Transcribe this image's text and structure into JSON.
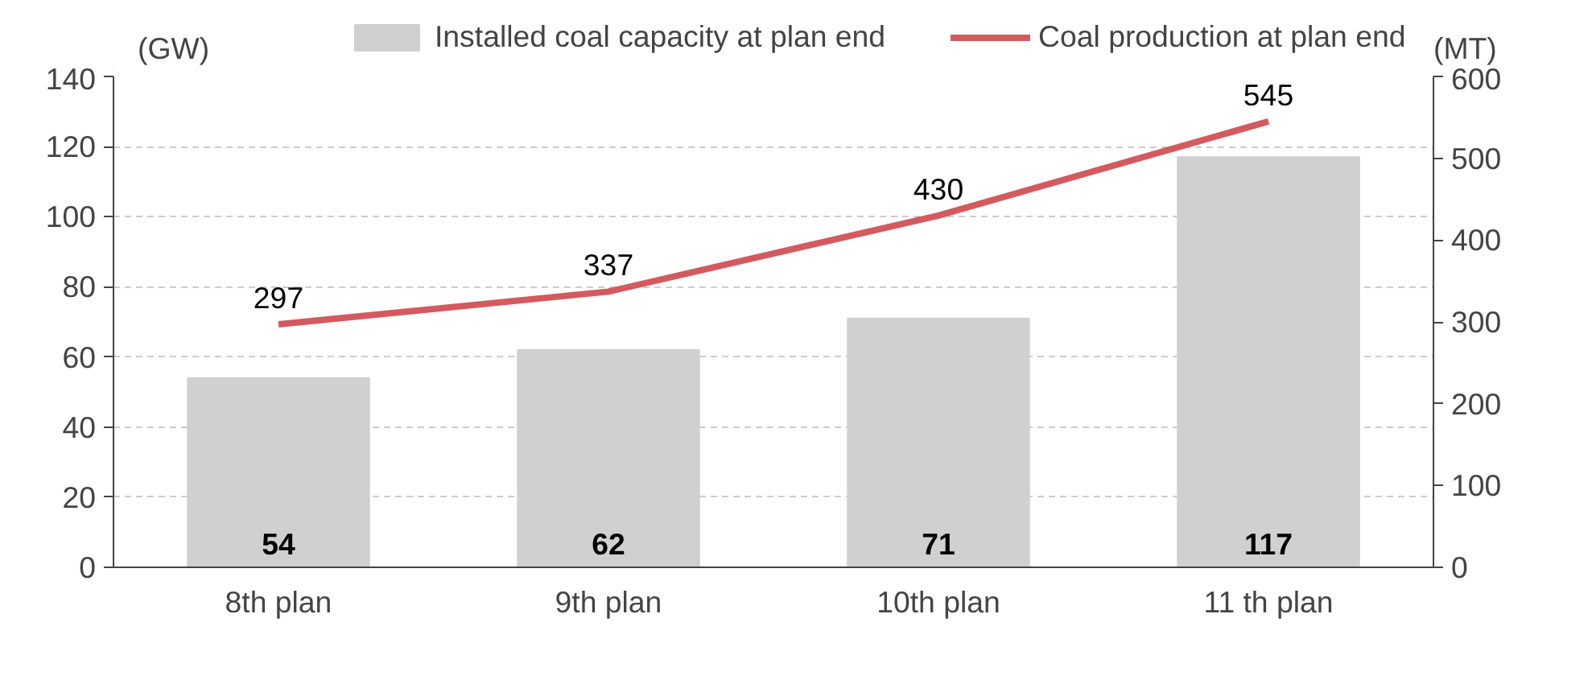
{
  "chart_data": {
    "type": "bar",
    "categories": [
      "8th plan",
      "9th plan",
      "10th plan",
      "11 th plan"
    ],
    "ylabel": "(GW)",
    "y2label": "(MT)",
    "ylim": [
      0,
      140
    ],
    "yticks": [
      0,
      20,
      40,
      60,
      80,
      100,
      120,
      140
    ],
    "y2lim": [
      0,
      600
    ],
    "y2ticks": [
      0,
      100,
      200,
      300,
      400,
      500,
      600
    ],
    "grid": "y",
    "legend": "top",
    "data_labels": true,
    "series": [
      {
        "name": "Installed coal capacity at plan end",
        "color": "#d0d0d0",
        "values": [
          54,
          62,
          71,
          117
        ]
      },
      {
        "name": "Coal production at plan end",
        "type": "line",
        "axis": "y2",
        "color": "#d45a5f",
        "values": [
          297,
          337,
          430,
          545
        ]
      }
    ]
  }
}
